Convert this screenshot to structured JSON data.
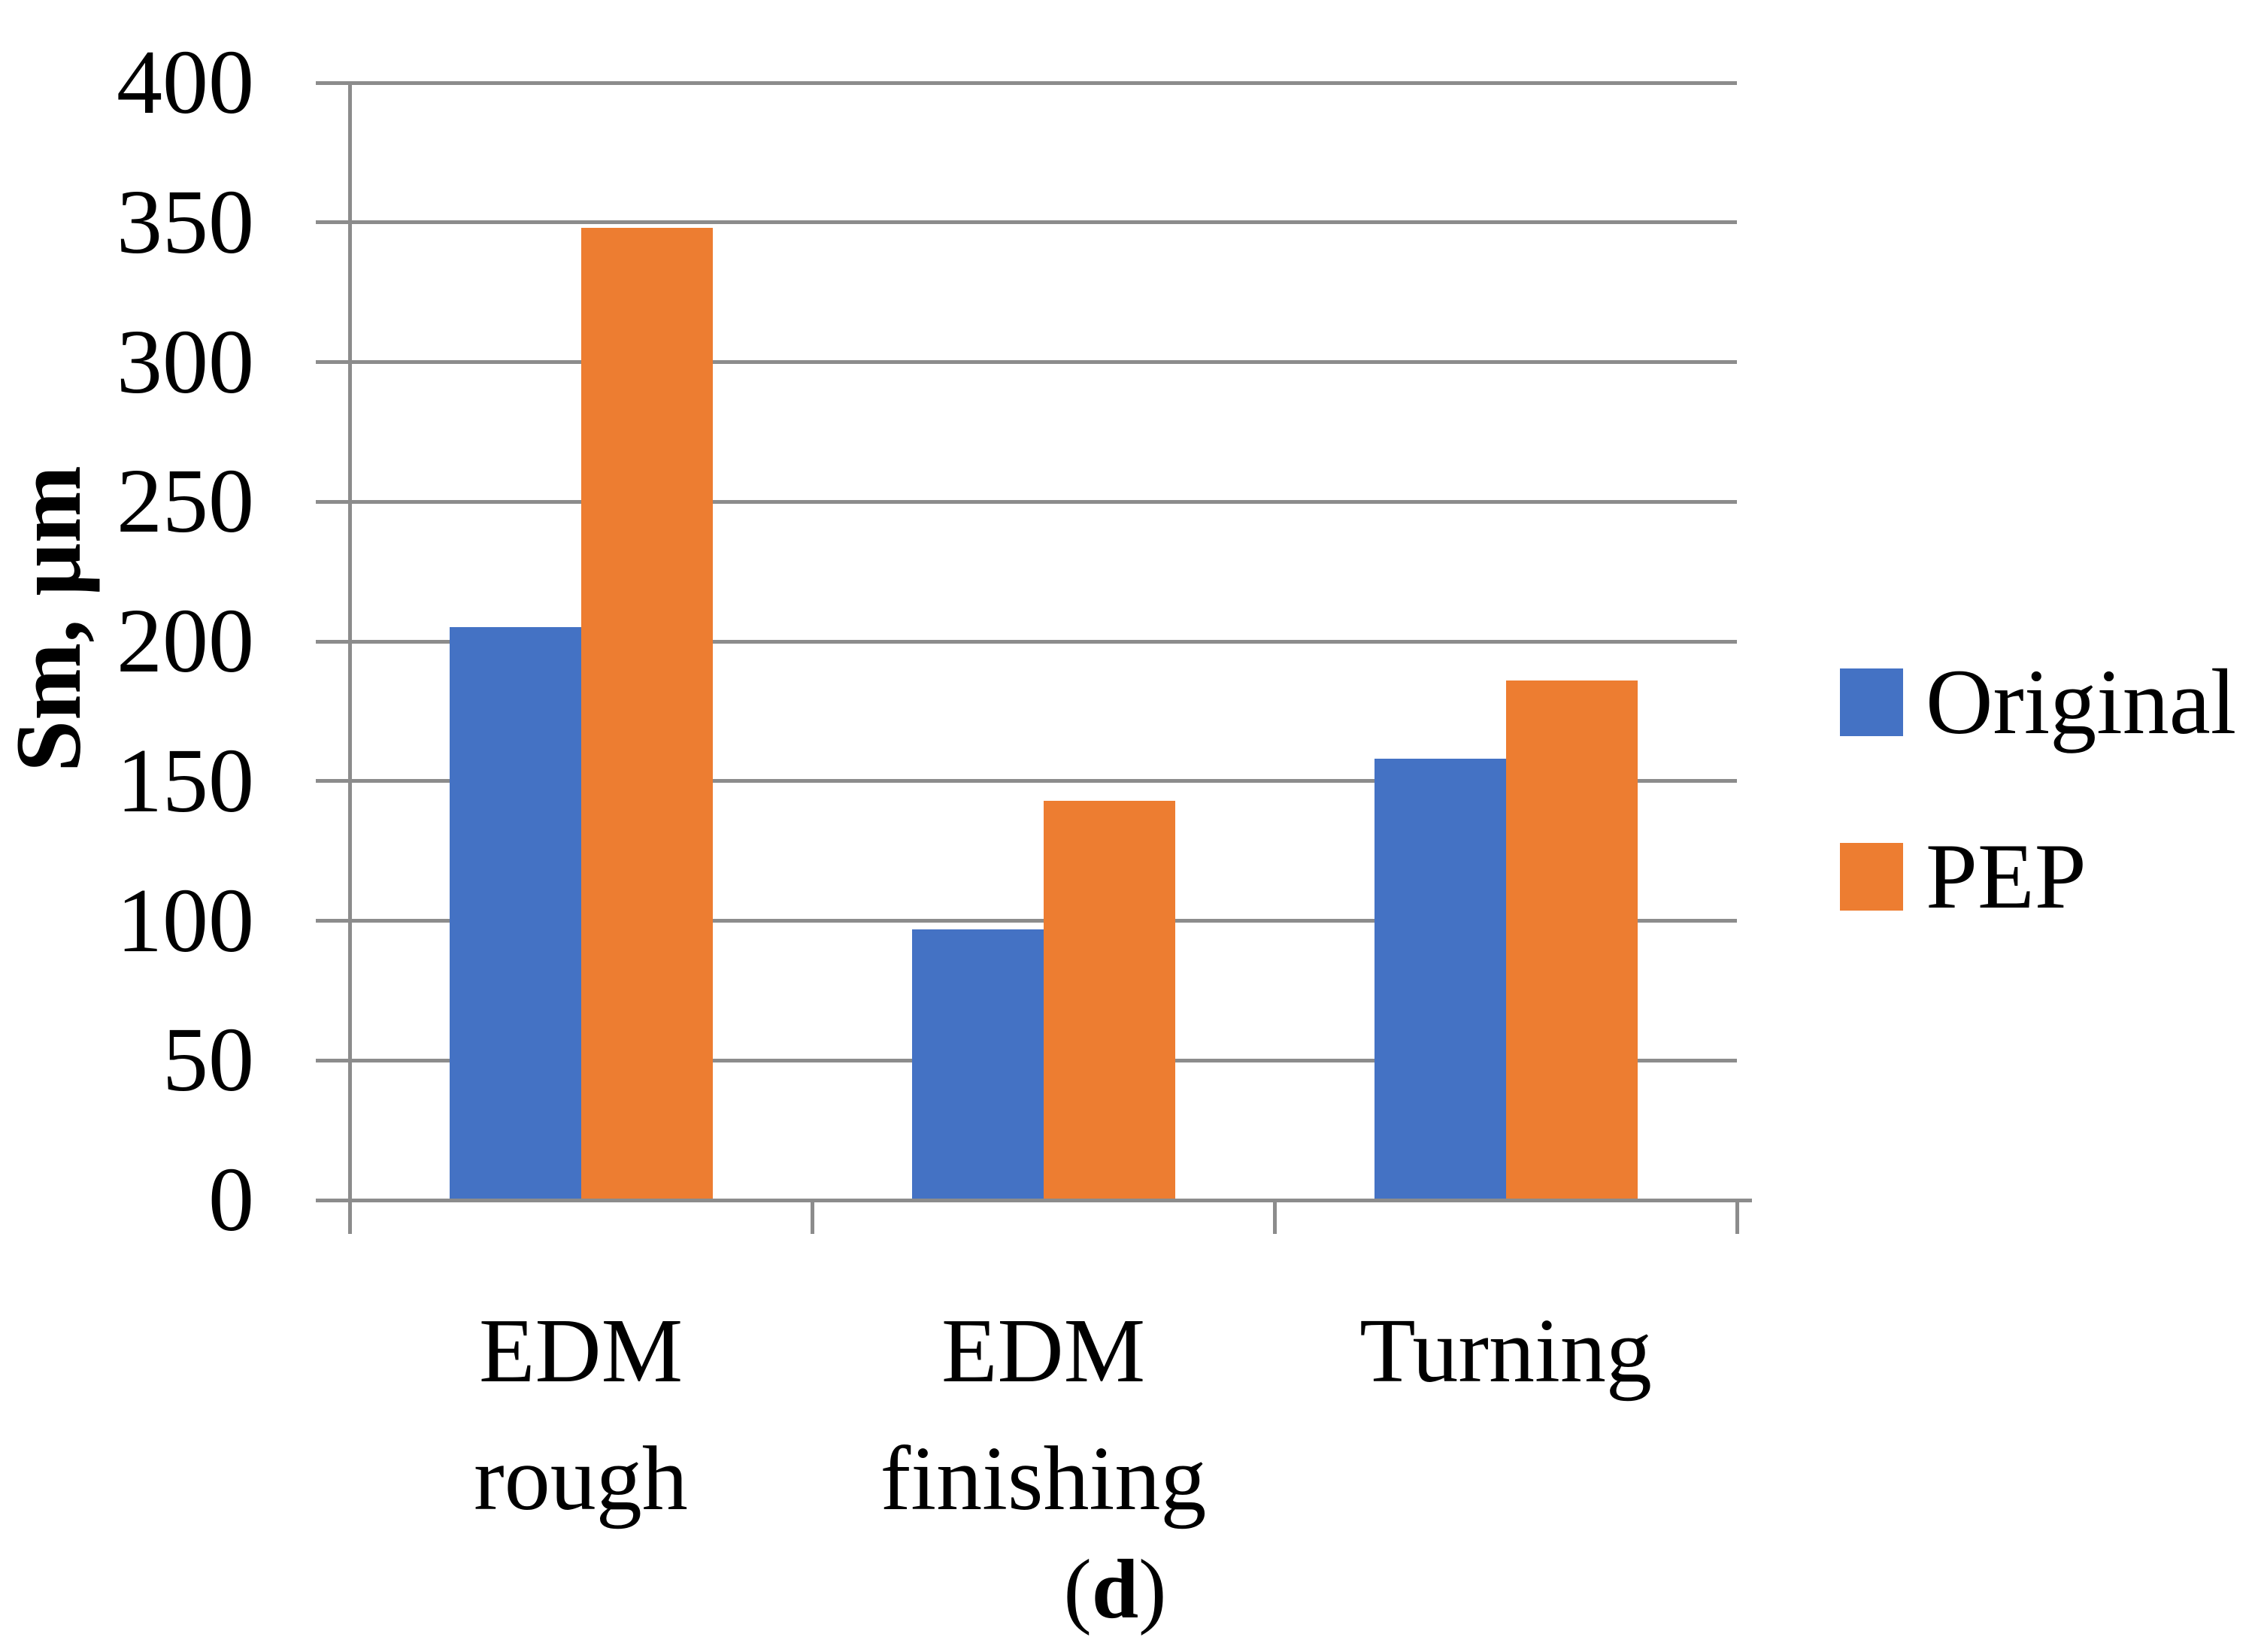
{
  "figure": {
    "caption": {
      "open": "(",
      "letter": "d",
      "close": ")"
    }
  },
  "chart_data": {
    "type": "bar",
    "title": "",
    "xlabel": "",
    "ylabel": "Sm, μm",
    "ylim": [
      0,
      400
    ],
    "ytick_step": 50,
    "yticks": [
      0,
      50,
      100,
      150,
      200,
      250,
      300,
      350,
      400
    ],
    "grid": "horizontal-gridlines-on",
    "legend_position": "right-center",
    "categories": [
      "EDM rough",
      "EDM finishing",
      "Turning"
    ],
    "category_label_lines": [
      [
        "EDM",
        "rough"
      ],
      [
        "EDM",
        "finishing"
      ],
      [
        "Turning"
      ]
    ],
    "series": [
      {
        "name": "Original",
        "color": "#4472C4",
        "values": [
          205,
          97,
          158
        ]
      },
      {
        "name": "PEP",
        "color": "#ED7D31",
        "values": [
          348,
          143,
          186
        ]
      }
    ],
    "axis_color": "#8C8C8C",
    "text_color": "#000000",
    "background": "#FFFFFF"
  }
}
